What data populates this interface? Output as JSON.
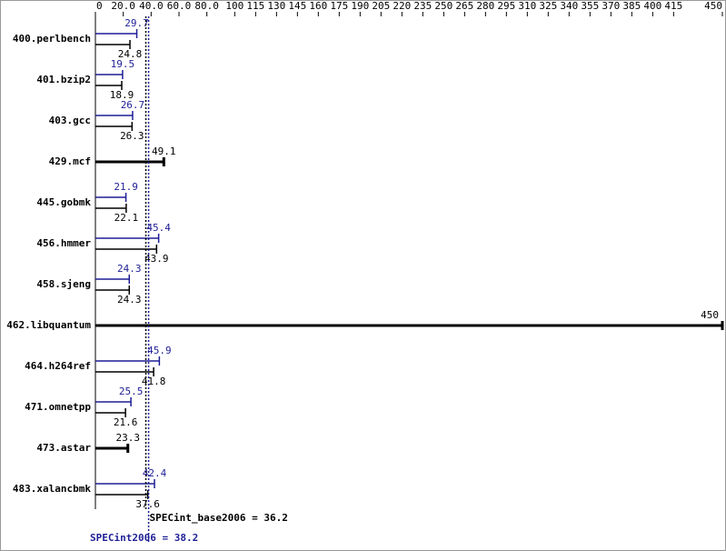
{
  "chart_data": {
    "type": "bar",
    "orientation": "horizontal",
    "categories": [
      "400.perlbench",
      "401.bzip2",
      "403.gcc",
      "429.mcf",
      "445.gobmk",
      "456.hmmer",
      "458.sjeng",
      "462.libquantum",
      "464.h264ref",
      "471.omnetpp",
      "473.astar",
      "483.xalancbmk"
    ],
    "series": [
      {
        "color": "#1e1e96",
        "values": [
          29.7,
          19.5,
          26.7,
          null,
          21.9,
          45.4,
          24.3,
          null,
          45.9,
          25.5,
          null,
          42.4
        ]
      },
      {
        "color": "#000000",
        "values": [
          24.8,
          18.9,
          26.3,
          49.1,
          22.1,
          43.9,
          24.3,
          450,
          41.8,
          21.6,
          23.3,
          37.6
        ]
      }
    ],
    "xlim": [
      0,
      450
    ],
    "xticks": [
      0,
      {
        "value": 20,
        "label": "20.0"
      },
      {
        "value": 40,
        "label": "40.0"
      },
      {
        "value": 60,
        "label": "60.0"
      },
      {
        "value": 80,
        "label": "80.0"
      },
      100,
      115,
      130,
      145,
      160,
      175,
      190,
      205,
      220,
      235,
      250,
      265,
      280,
      295,
      310,
      325,
      340,
      355,
      370,
      385,
      400,
      415,
      450
    ],
    "reference_lines": [
      {
        "label": "SPECint_base2006 = 36.2",
        "value": 36.2,
        "color": "#000000"
      },
      {
        "label": "SPECint2006 = 38.2",
        "value": 38.2,
        "color": "#1e1e96"
      }
    ]
  }
}
